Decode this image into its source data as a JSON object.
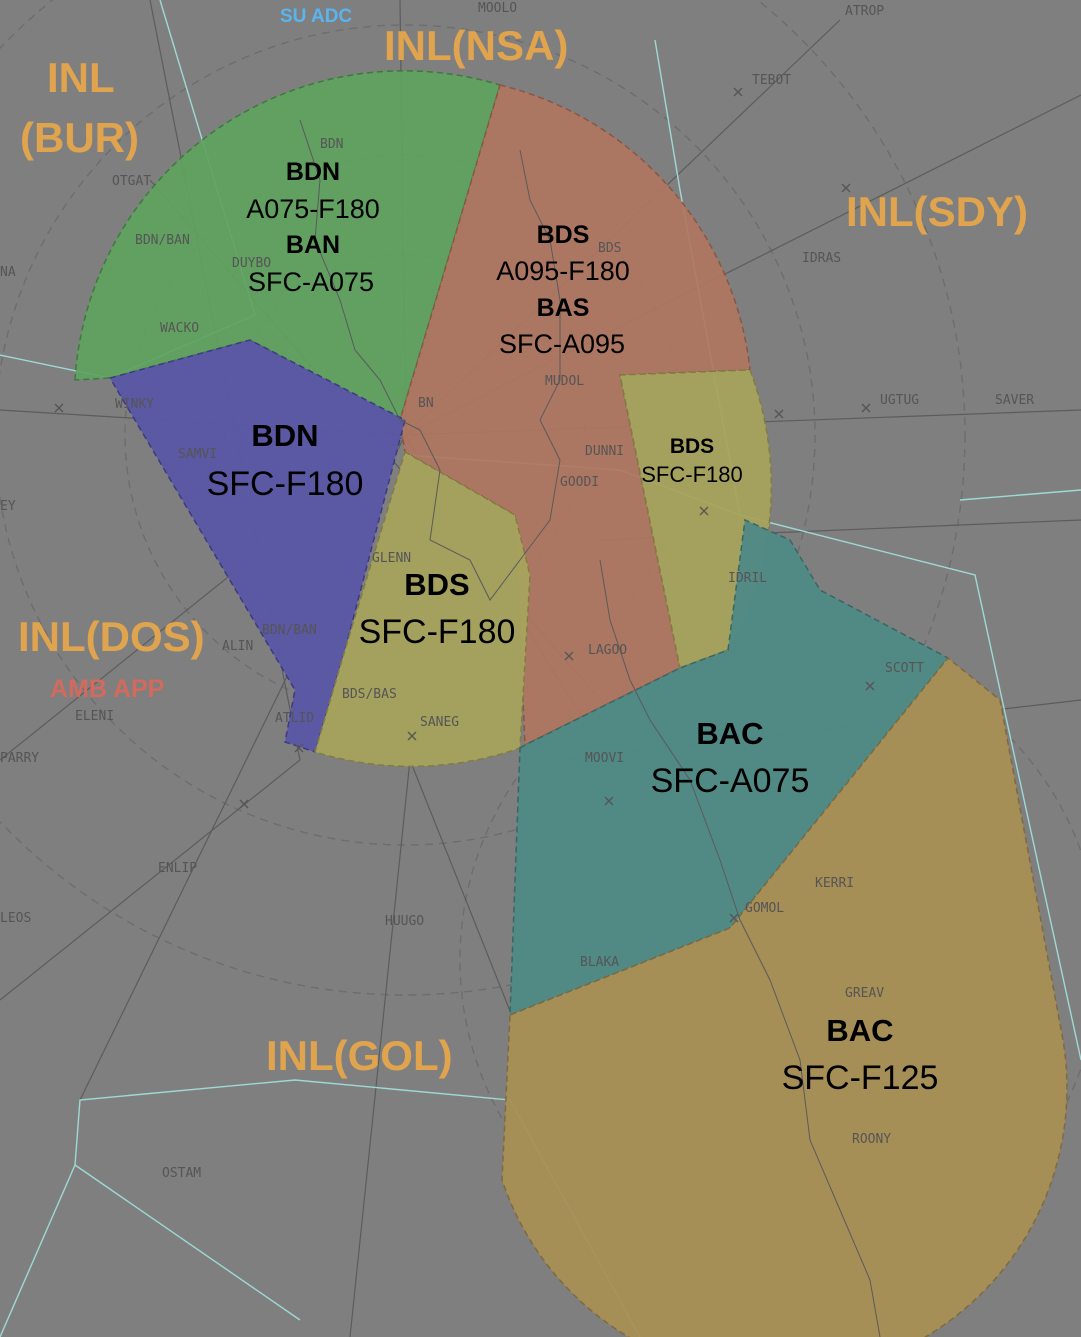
{
  "colors": {
    "background": "#7f7f7f",
    "region_label": "#e0a44e",
    "su_adc": "#5ab4f0",
    "amb_app": "#d26a5e",
    "boundary_line": "#9ed9d4",
    "green_sector": "#5fa35f",
    "red_sector": "#b0765f",
    "blue_sector": "#5a56a6",
    "yellow_sector": "#a7a35d",
    "teal_sector": "#4f8a86",
    "tan_sector": "#a98f55"
  },
  "regions": {
    "inl_bur_line1": "INL",
    "inl_bur_line2": "(BUR)",
    "inl_nsa": "INL(NSA)",
    "inl_sdy": "INL(SDY)",
    "inl_dos": "INL(DOS)",
    "inl_gol": "INL(GOL)"
  },
  "facilities": {
    "su_adc": "SU ADC",
    "amb_app": "AMB APP"
  },
  "sectors": {
    "green": {
      "line1": "BDN",
      "line2": "A075-F180",
      "line3": "BAN",
      "line4": "SFC-A075"
    },
    "red": {
      "line1": "BDS",
      "line2": "A095-F180",
      "line3": "BAS",
      "line4": "SFC-A095"
    },
    "blue": {
      "line1": "BDN",
      "line2": "SFC-F180"
    },
    "yellow_center": {
      "line1": "BDS",
      "line2": "SFC-F180"
    },
    "yellow_east": {
      "line1": "BDS",
      "line2": "SFC-F180"
    },
    "teal": {
      "line1": "BAC",
      "line2": "SFC-A075"
    },
    "tan": {
      "line1": "BAC",
      "line2": "SFC-F125"
    }
  },
  "fixes": {
    "moolo": "MOOLO",
    "atrop": "ATROP",
    "tebot": "TEBOT",
    "bdn": "BDN",
    "otgat": "OTGAT",
    "bdn_ban_1": "BDN/BAN",
    "duybo": "DUYBO",
    "wacko": "WACKO",
    "winky": "WINKY",
    "samvi": "SAMVI",
    "bn": "BN",
    "bds": "BDS",
    "idras": "IDRAS",
    "mudol": "MUDOL",
    "dunni": "DUNNI",
    "goodi": "GOODI",
    "ugtug": "UGTUG",
    "saver": "SAVER",
    "glenn": "GLENN",
    "bdn_ban_2": "BDN/BAN",
    "alin": "ALIN",
    "eleni": "ELENI",
    "parry": "PARRY",
    "atlid": "ATLID",
    "bds_bas": "BDS/BAS",
    "saneg": "SANEG",
    "moovi": "MOOVI",
    "lagoo": "LAGOO",
    "idril": "IDRIL",
    "scott": "SCOTT",
    "enlip": "ENLIP",
    "leos": "LEOS",
    "huugo": "HUUGO",
    "kerri": "KERRI",
    "gomol": "GOMOL",
    "blaka": "BLAKA",
    "greav": "GREAV",
    "roony": "ROONY",
    "ostam": "OSTAM",
    "ey": "EY",
    "na": "NA"
  }
}
